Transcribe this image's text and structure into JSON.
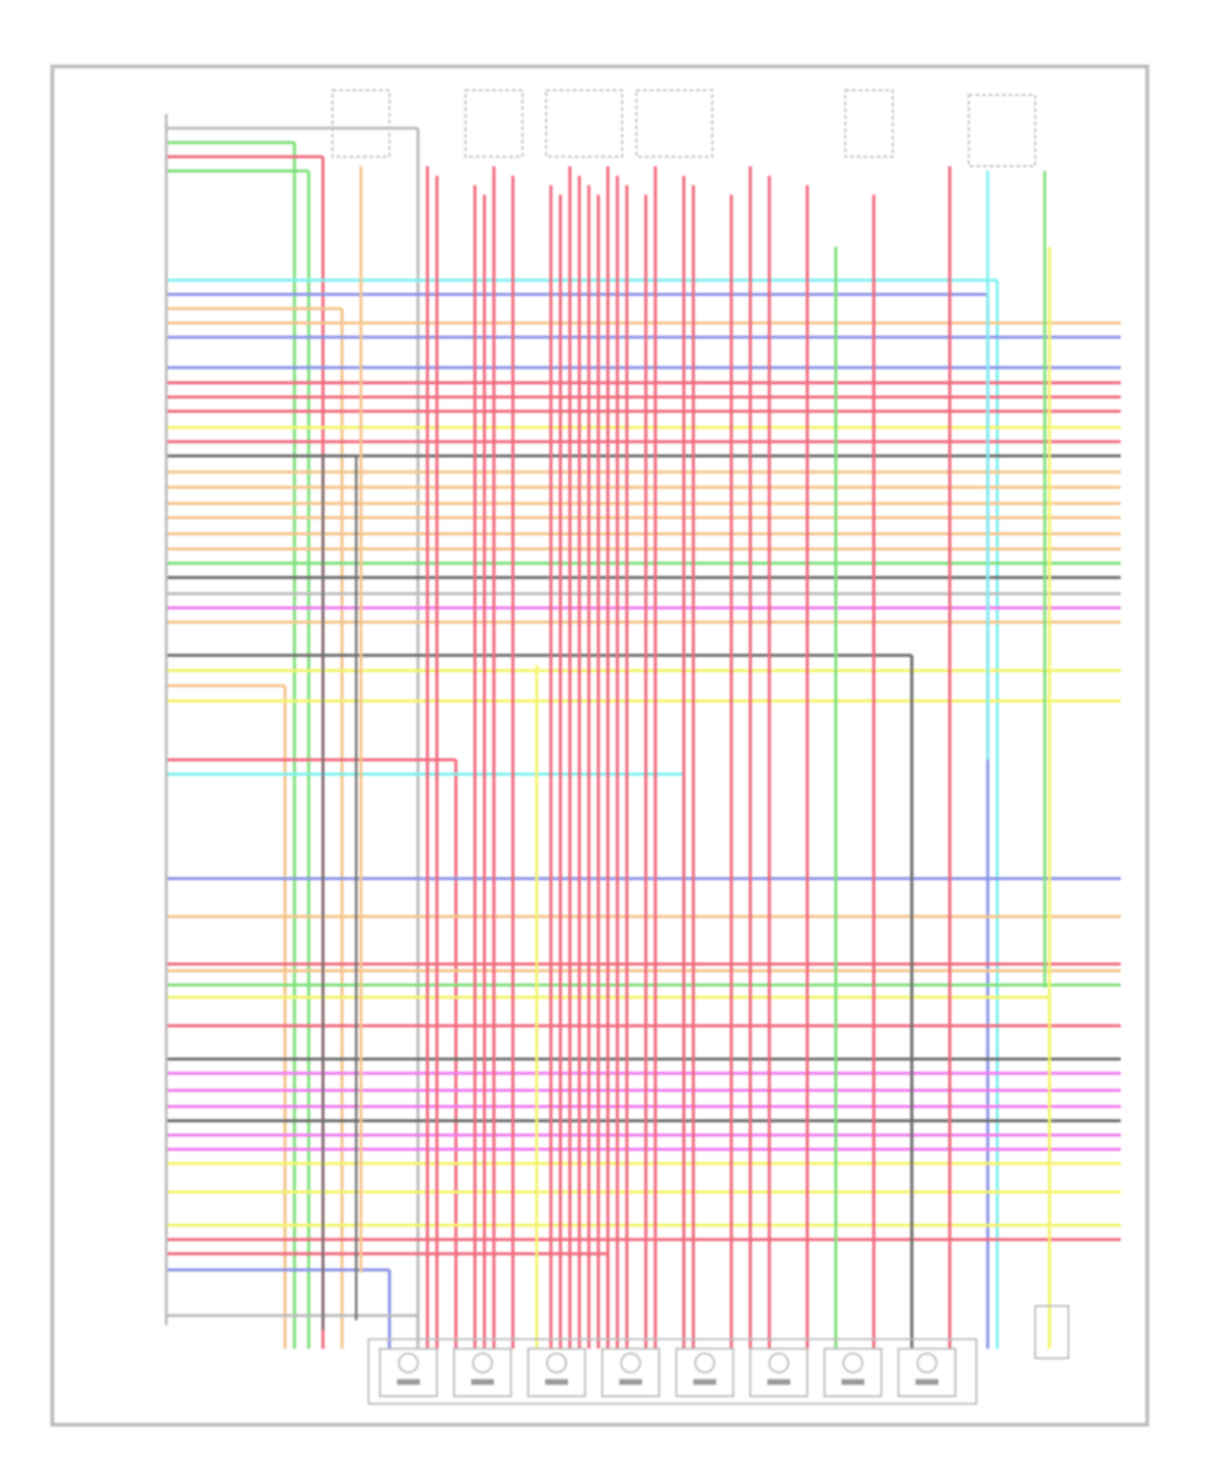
{
  "diagram": {
    "type": "wiring-schematic",
    "coil_count": 8,
    "colors": {
      "frame": "#b8b8b8",
      "red": "#f06a7e",
      "green": "#7fe07a",
      "cyan": "#7ff0f0",
      "blue": "#8a94e8",
      "orange": "#f5c48a",
      "yellow": "#f3f36a",
      "magenta": "#f07af0",
      "darkgray": "#6e6e6e",
      "gray": "#bdbdbd"
    },
    "horizontal_wires": [
      "gray",
      "green",
      "red",
      "green",
      "cyan",
      "blue",
      "orange",
      "orange",
      "blue",
      "blue",
      "red",
      "red",
      "red",
      "yellow",
      "red",
      "darkgray",
      "orange",
      "orange",
      "orange",
      "orange",
      "orange",
      "orange",
      "green",
      "darkgray",
      "gray",
      "magenta",
      "orange",
      "darkgray",
      "yellow",
      "orange",
      "yellow",
      "red",
      "cyan",
      "blue",
      "orange",
      "red",
      "orange",
      "green",
      "yellow",
      "red",
      "darkgray",
      "magenta",
      "magenta",
      "magenta",
      "darkgray",
      "magenta",
      "magenta",
      "yellow",
      "yellow",
      "yellow",
      "red",
      "red",
      "blue",
      "gray"
    ]
  }
}
